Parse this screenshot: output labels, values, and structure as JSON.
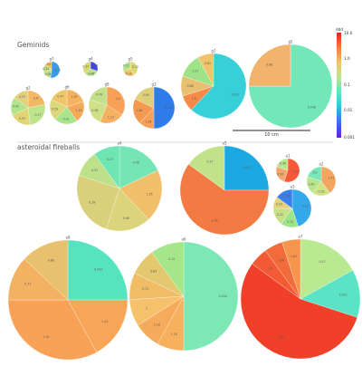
{
  "chart_data": {
    "type": "pie",
    "colorbar": {
      "ticks": [
        "10.0",
        "1.0",
        "0.1",
        "0.01",
        "0.001"
      ],
      "top_label": "ddd",
      "scale": "log",
      "colors": [
        "#f04a1c",
        "#fb8d3d",
        "#f2d269",
        "#9be87f",
        "#56e4c0",
        "#32b8e0",
        "#3a66f0",
        "#5a2fe8"
      ]
    },
    "scale_bar_label": "10 cm",
    "groups": [
      {
        "label": "Geminids",
        "pies": [
          {
            "name": "g7",
            "slices": [
              {
                "v": 0.52,
                "label": "0.11",
                "c": "#3a9be8"
              },
              {
                "v": 0.18,
                "label": "0.08",
                "c": "#bce08a"
              },
              {
                "v": 0.16,
                "label": "0.11",
                "c": "#c4d97c"
              },
              {
                "v": 0.14,
                "label": "0.1",
                "c": "#f0c060"
              }
            ]
          },
          {
            "name": "g4",
            "slices": [
              {
                "v": 0.3,
                "label": "0.19",
                "c": "#4444e8"
              },
              {
                "v": 0.35,
                "label": "0.68",
                "c": "#b8e08a"
              },
              {
                "v": 0.35,
                "label": "0.37",
                "c": "#d8d87a"
              }
            ]
          },
          {
            "name": "g5",
            "slices": [
              {
                "v": 0.4,
                "label": "0.12",
                "c": "#dada6e"
              },
              {
                "v": 0.3,
                "label": "0.21",
                "c": "#f2c266"
              },
              {
                "v": 0.3,
                "label": "0.12",
                "c": "#b2e58c"
              }
            ]
          },
          {
            "name": "g2",
            "slices": [
              {
                "v": 0.22,
                "label": "0.6",
                "c": "#f4b764"
              },
              {
                "v": 0.26,
                "label": "0.77",
                "c": "#bde48d"
              },
              {
                "v": 0.2,
                "label": "0.53",
                "c": "#e1d574"
              },
              {
                "v": 0.17,
                "label": "0.45",
                "c": "#aee58a"
              },
              {
                "v": 0.15,
                "label": "0.27",
                "c": "#dfd27a"
              }
            ]
          },
          {
            "name": "g6",
            "slices": [
              {
                "v": 0.2,
                "label": "1.05",
                "c": "#f5b361"
              },
              {
                "v": 0.2,
                "label": "1.18",
                "c": "#f7a959"
              },
              {
                "v": 0.22,
                "label": "0.41",
                "c": "#a9e58b"
              },
              {
                "v": 0.2,
                "label": "0.59",
                "c": "#d9d779"
              },
              {
                "v": 0.18,
                "label": "0.47",
                "c": "#f0c66c"
              }
            ]
          },
          {
            "name": "g8",
            "slices": [
              {
                "v": 0.34,
                "label": "2.0",
                "c": "#f8a055"
              },
              {
                "v": 0.22,
                "label": "1.13",
                "c": "#f5b062"
              },
              {
                "v": 0.24,
                "label": "0.68",
                "c": "#cfe087"
              },
              {
                "v": 0.2,
                "label": "0.49",
                "c": "#c4e08a"
              }
            ]
          },
          {
            "name": "g3",
            "slices": [
              {
                "v": 0.5,
                "label": "0.004",
                "c": "#2e7cec"
              },
              {
                "v": 0.12,
                "label": "1.36",
                "c": "#f6a055"
              },
              {
                "v": 0.2,
                "label": "1.48",
                "c": "#f39a50"
              },
              {
                "v": 0.18,
                "label": "0.49",
                "c": "#dfcf78"
              }
            ]
          },
          {
            "name": "g1",
            "slices": [
              {
                "v": 0.62,
                "label": "0.022",
                "c": "#38d0d8"
              },
              {
                "v": 0.08,
                "label": "2.8",
                "c": "#f78a48"
              },
              {
                "v": 0.1,
                "label": "0.68",
                "c": "#e7c072"
              },
              {
                "v": 0.12,
                "label": "0.17",
                "c": "#9fe389"
              },
              {
                "v": 0.08,
                "label": "0.81",
                "c": "#f0c46d"
              }
            ]
          },
          {
            "name": "g5",
            "slices": [
              {
                "v": 0.75,
                "label": "0.048",
                "c": "#72e8b8"
              },
              {
                "v": 0.25,
                "label": "0.88",
                "c": "#f2b46c"
              }
            ]
          }
        ]
      },
      {
        "label": "asteroidal fireballs",
        "pies": [
          {
            "name": "a4",
            "slices": [
              {
                "v": 0.18,
                "label": "0.08",
                "c": "#76e5b6"
              },
              {
                "v": 0.2,
                "label": "1.05",
                "c": "#f0c16a"
              },
              {
                "v": 0.17,
                "label": "0.68",
                "c": "#dcd47a"
              },
              {
                "v": 0.25,
                "label": "0.39",
                "c": "#d8d07a"
              },
              {
                "v": 0.1,
                "label": "0.21",
                "c": "#bde08a"
              },
              {
                "v": 0.1,
                "label": "0.27",
                "c": "#6fe5b4"
              }
            ]
          },
          {
            "name": "a5",
            "slices": [
              {
                "v": 0.25,
                "label": "0.017",
                "c": "#1ca8e0"
              },
              {
                "v": 0.6,
                "label": "2.34",
                "c": "#f37a42"
              },
              {
                "v": 0.15,
                "label": "0.27",
                "c": "#c2e28a"
              }
            ]
          },
          {
            "name": "a1",
            "slices": [
              {
                "v": 0.55,
                "label": "3.72",
                "c": "#f6583a"
              },
              {
                "v": 0.25,
                "label": "0.59",
                "c": "#f2a86a"
              },
              {
                "v": 0.2,
                "label": "0.36",
                "c": "#bde48a"
              }
            ]
          },
          {
            "name": "a2",
            "slices": [
              {
                "v": 0.4,
                "label": "1.41",
                "c": "#f4a660"
              },
              {
                "v": 0.2,
                "label": "0.53",
                "c": "#cfe387"
              },
              {
                "v": 0.2,
                "label": "0.42",
                "c": "#b7e58c"
              },
              {
                "v": 0.2,
                "label": "0.2",
                "c": "#7ae7b8"
              }
            ]
          },
          {
            "name": "a3",
            "slices": [
              {
                "v": 0.45,
                "label": "0.01",
                "c": "#34a8e8"
              },
              {
                "v": 0.15,
                "label": "0.15",
                "c": "#9ee58a"
              },
              {
                "v": 0.15,
                "label": "0.22",
                "c": "#c8e08a"
              },
              {
                "v": 0.1,
                "label": "0.33",
                "c": "#e3d27a"
              },
              {
                "v": 0.15,
                "label": "0.002",
                "c": "#3a80ec"
              }
            ]
          },
          {
            "name": "a8",
            "slices": [
              {
                "v": 0.25,
                "label": "0.042",
                "c": "#56e4c0"
              },
              {
                "v": 0.17,
                "label": "1.43",
                "c": "#f7a657"
              },
              {
                "v": 0.33,
                "label": "1.16",
                "c": "#f8a258"
              },
              {
                "v": 0.12,
                "label": "0.71",
                "c": "#f3b263"
              },
              {
                "v": 0.13,
                "label": "0.88",
                "c": "#e8c06e"
              }
            ]
          },
          {
            "name": "a6",
            "slices": [
              {
                "v": 0.5,
                "label": "0.044",
                "c": "#7de8b6"
              },
              {
                "v": 0.08,
                "label": "1.18",
                "c": "#f7b05c"
              },
              {
                "v": 0.08,
                "label": "1.16",
                "c": "#f5aa5c"
              },
              {
                "v": 0.08,
                "label": "1",
                "c": "#f7c06a"
              },
              {
                "v": 0.08,
                "label": "0.71",
                "c": "#f0bc66"
              },
              {
                "v": 0.08,
                "label": "0.83",
                "c": "#e3c86f"
              },
              {
                "v": 0.1,
                "label": "0.12",
                "c": "#a6e68a"
              }
            ]
          },
          {
            "name": "a7",
            "slices": [
              {
                "v": 0.17,
                "label": "0.17",
                "c": "#b9e990"
              },
              {
                "v": 0.13,
                "label": "0.011",
                "c": "#5ae3c4"
              },
              {
                "v": 0.55,
                "label": "4.83",
                "c": "#f0402a"
              },
              {
                "v": 0.05,
                "label": "3.6",
                "c": "#f25b36"
              },
              {
                "v": 0.05,
                "label": "2.66",
                "c": "#f26b3a"
              },
              {
                "v": 0.05,
                "label": "1.81",
                "c": "#f6964c"
              }
            ]
          }
        ]
      }
    ]
  }
}
